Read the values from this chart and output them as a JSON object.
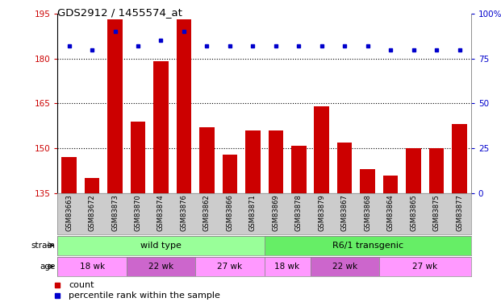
{
  "title": "GDS2912 / 1455574_at",
  "samples": [
    "GSM83663",
    "GSM83672",
    "GSM83873",
    "GSM83870",
    "GSM83874",
    "GSM83876",
    "GSM83862",
    "GSM83866",
    "GSM83871",
    "GSM83869",
    "GSM83878",
    "GSM83879",
    "GSM83867",
    "GSM83868",
    "GSM83864",
    "GSM83865",
    "GSM83875",
    "GSM83877"
  ],
  "counts": [
    147,
    140,
    193,
    159,
    179,
    193,
    157,
    148,
    156,
    156,
    151,
    164,
    152,
    143,
    141,
    150,
    150,
    158
  ],
  "percentiles": [
    82,
    80,
    90,
    82,
    85,
    90,
    82,
    82,
    82,
    82,
    82,
    82,
    82,
    82,
    80,
    80,
    80,
    80
  ],
  "ymin": 135,
  "ymax": 195,
  "yticks": [
    135,
    150,
    165,
    180,
    195
  ],
  "right_yticks": [
    0,
    25,
    50,
    75,
    100
  ],
  "bar_color": "#CC0000",
  "dot_color": "#0000CC",
  "bg_color": "#FFFFFF",
  "axis_label_color_left": "#CC0000",
  "axis_label_color_right": "#0000CC",
  "tick_bg_color": "#CCCCCC",
  "legend_count_color": "#CC0000",
  "legend_pct_color": "#0000CC",
  "wt_color": "#99FF99",
  "rg_color": "#66EE66",
  "age_light_color": "#FF99FF",
  "age_dark_color": "#CC66CC",
  "wt_samples": 9,
  "rg_samples": 9,
  "age_groups_wt": [
    [
      0,
      3,
      "18 wk"
    ],
    [
      3,
      6,
      "22 wk"
    ],
    [
      6,
      9,
      "27 wk"
    ]
  ],
  "age_groups_rg": [
    [
      9,
      11,
      "18 wk"
    ],
    [
      11,
      14,
      "22 wk"
    ],
    [
      14,
      18,
      "27 wk"
    ]
  ]
}
